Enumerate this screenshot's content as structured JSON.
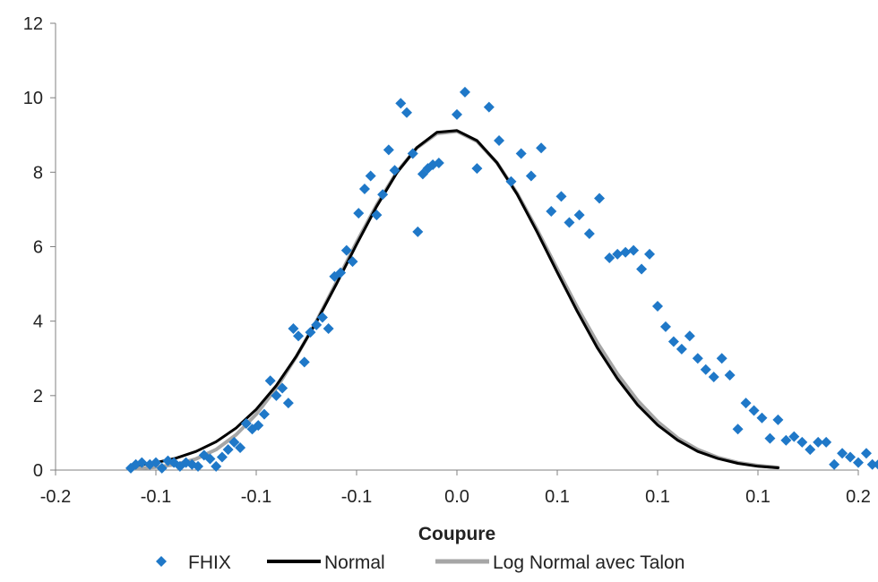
{
  "chart_data": {
    "type": "scatter",
    "title": "",
    "xlabel": "Coupure",
    "ylabel": "",
    "xlim": [
      -0.2,
      0.2
    ],
    "ylim": [
      0,
      12
    ],
    "x_tick_values": [
      -0.2,
      -0.15,
      -0.1,
      -0.05,
      0,
      0.05,
      0.1,
      0.15,
      0.2
    ],
    "x_tick_labels": [
      "-0.2",
      "-0.1",
      "-0.1",
      "-0.1",
      "0.0",
      "0.1",
      "0.1",
      "0.1",
      "0.2"
    ],
    "y_ticks": [
      0,
      2,
      4,
      6,
      8,
      10,
      12
    ],
    "grid": false,
    "legend_position": "bottom",
    "series": [
      {
        "name": "FHIX",
        "kind": "scatter",
        "marker": "diamond",
        "color": "#1f78c8",
        "points": [
          [
            -0.1625,
            0.05
          ],
          [
            -0.16,
            0.15
          ],
          [
            -0.157,
            0.2
          ],
          [
            -0.153,
            0.15
          ],
          [
            -0.15,
            0.2
          ],
          [
            -0.147,
            0.05
          ],
          [
            -0.144,
            0.25
          ],
          [
            -0.141,
            0.2
          ],
          [
            -0.138,
            0.1
          ],
          [
            -0.135,
            0.2
          ],
          [
            -0.132,
            0.15
          ],
          [
            -0.129,
            0.1
          ],
          [
            -0.126,
            0.4
          ],
          [
            -0.123,
            0.3
          ],
          [
            -0.12,
            0.1
          ],
          [
            -0.117,
            0.35
          ],
          [
            -0.114,
            0.55
          ],
          [
            -0.111,
            0.75
          ],
          [
            -0.108,
            0.6
          ],
          [
            -0.105,
            1.25
          ],
          [
            -0.102,
            1.1
          ],
          [
            -0.099,
            1.2
          ],
          [
            -0.096,
            1.5
          ],
          [
            -0.093,
            2.4
          ],
          [
            -0.09,
            2.0
          ],
          [
            -0.087,
            2.2
          ],
          [
            -0.084,
            1.8
          ],
          [
            -0.0815,
            3.8
          ],
          [
            -0.079,
            3.6
          ],
          [
            -0.076,
            2.9
          ],
          [
            -0.073,
            3.7
          ],
          [
            -0.07,
            3.9
          ],
          [
            -0.067,
            4.1
          ],
          [
            -0.064,
            3.8
          ],
          [
            -0.061,
            5.2
          ],
          [
            -0.058,
            5.3
          ],
          [
            -0.055,
            5.9
          ],
          [
            -0.052,
            5.6
          ],
          [
            -0.049,
            6.9
          ],
          [
            -0.046,
            7.55
          ],
          [
            -0.043,
            7.9
          ],
          [
            -0.04,
            6.85
          ],
          [
            -0.037,
            7.4
          ],
          [
            -0.034,
            8.6
          ],
          [
            -0.031,
            8.05
          ],
          [
            -0.028,
            9.85
          ],
          [
            -0.025,
            9.6
          ],
          [
            -0.022,
            8.5
          ],
          [
            -0.0195,
            6.4
          ],
          [
            -0.017,
            7.95
          ],
          [
            -0.0145,
            8.1
          ],
          [
            -0.012,
            8.2
          ],
          [
            -0.009,
            8.25
          ],
          [
            0.0,
            9.55
          ],
          [
            0.004,
            10.15
          ],
          [
            0.01,
            8.1
          ],
          [
            0.016,
            9.75
          ],
          [
            0.021,
            8.85
          ],
          [
            0.027,
            7.75
          ],
          [
            0.032,
            8.5
          ],
          [
            0.037,
            7.9
          ],
          [
            0.042,
            8.65
          ],
          [
            0.047,
            6.95
          ],
          [
            0.052,
            7.35
          ],
          [
            0.056,
            6.65
          ],
          [
            0.061,
            6.85
          ],
          [
            0.066,
            6.35
          ],
          [
            0.071,
            7.3
          ],
          [
            0.076,
            5.7
          ],
          [
            0.08,
            5.8
          ],
          [
            0.084,
            5.85
          ],
          [
            0.088,
            5.9
          ],
          [
            0.092,
            5.4
          ],
          [
            0.096,
            5.8
          ],
          [
            0.1,
            4.4
          ],
          [
            0.104,
            3.85
          ],
          [
            0.108,
            3.45
          ],
          [
            0.112,
            3.25
          ],
          [
            0.116,
            3.6
          ],
          [
            0.12,
            3.0
          ],
          [
            0.124,
            2.7
          ],
          [
            0.128,
            2.5
          ],
          [
            0.132,
            3.0
          ],
          [
            0.136,
            2.55
          ],
          [
            0.14,
            1.1
          ],
          [
            0.144,
            1.8
          ],
          [
            0.148,
            1.6
          ],
          [
            0.152,
            1.4
          ],
          [
            0.156,
            0.85
          ],
          [
            0.16,
            1.35
          ],
          [
            0.164,
            0.8
          ],
          [
            0.168,
            0.9
          ],
          [
            0.172,
            0.75
          ],
          [
            0.176,
            0.55
          ],
          [
            0.18,
            0.75
          ],
          [
            0.184,
            0.75
          ],
          [
            0.188,
            0.15
          ],
          [
            0.192,
            0.45
          ],
          [
            0.196,
            0.35
          ],
          [
            0.2,
            0.2
          ],
          [
            0.204,
            0.45
          ],
          [
            0.207,
            0.15
          ],
          [
            0.21,
            0.15
          ],
          [
            0.213,
            0.2
          ]
        ]
      },
      {
        "name": "Normal",
        "kind": "line",
        "color": "#000000",
        "points": [
          [
            -0.16,
            0.12
          ],
          [
            -0.15,
            0.2
          ],
          [
            -0.14,
            0.32
          ],
          [
            -0.13,
            0.5
          ],
          [
            -0.12,
            0.76
          ],
          [
            -0.11,
            1.13
          ],
          [
            -0.1,
            1.63
          ],
          [
            -0.09,
            2.27
          ],
          [
            -0.08,
            3.06
          ],
          [
            -0.07,
            3.98
          ],
          [
            -0.06,
            5.0
          ],
          [
            -0.05,
            6.06
          ],
          [
            -0.04,
            7.08
          ],
          [
            -0.03,
            7.98
          ],
          [
            -0.02,
            8.66
          ],
          [
            -0.01,
            9.07
          ],
          [
            0.0,
            9.12
          ],
          [
            0.01,
            8.85
          ],
          [
            0.02,
            8.25
          ],
          [
            0.03,
            7.41
          ],
          [
            0.04,
            6.39
          ],
          [
            0.05,
            5.31
          ],
          [
            0.06,
            4.26
          ],
          [
            0.07,
            3.28
          ],
          [
            0.08,
            2.45
          ],
          [
            0.09,
            1.75
          ],
          [
            0.1,
            1.21
          ],
          [
            0.11,
            0.8
          ],
          [
            0.12,
            0.5
          ],
          [
            0.13,
            0.31
          ],
          [
            0.14,
            0.18
          ],
          [
            0.15,
            0.1
          ],
          [
            0.16,
            0.06
          ]
        ]
      },
      {
        "name": "Log Normal avec Talon",
        "kind": "line",
        "color": "#a6a6a6",
        "points": [
          [
            -0.16,
            0.04
          ],
          [
            -0.15,
            0.08
          ],
          [
            -0.14,
            0.15
          ],
          [
            -0.13,
            0.3
          ],
          [
            -0.12,
            0.55
          ],
          [
            -0.11,
            0.95
          ],
          [
            -0.1,
            1.5
          ],
          [
            -0.09,
            2.2
          ],
          [
            -0.08,
            3.05
          ],
          [
            -0.07,
            4.0
          ],
          [
            -0.06,
            5.05
          ],
          [
            -0.05,
            6.12
          ],
          [
            -0.04,
            7.12
          ],
          [
            -0.03,
            8.0
          ],
          [
            -0.02,
            8.65
          ],
          [
            -0.01,
            9.04
          ],
          [
            0.0,
            9.1
          ],
          [
            0.01,
            8.83
          ],
          [
            0.02,
            8.25
          ],
          [
            0.03,
            7.43
          ],
          [
            0.04,
            6.45
          ],
          [
            0.05,
            5.4
          ],
          [
            0.06,
            4.37
          ],
          [
            0.07,
            3.42
          ],
          [
            0.08,
            2.58
          ],
          [
            0.09,
            1.87
          ],
          [
            0.1,
            1.3
          ],
          [
            0.11,
            0.86
          ],
          [
            0.12,
            0.55
          ],
          [
            0.13,
            0.34
          ],
          [
            0.14,
            0.2
          ],
          [
            0.15,
            0.12
          ],
          [
            0.16,
            0.07
          ]
        ]
      }
    ]
  }
}
